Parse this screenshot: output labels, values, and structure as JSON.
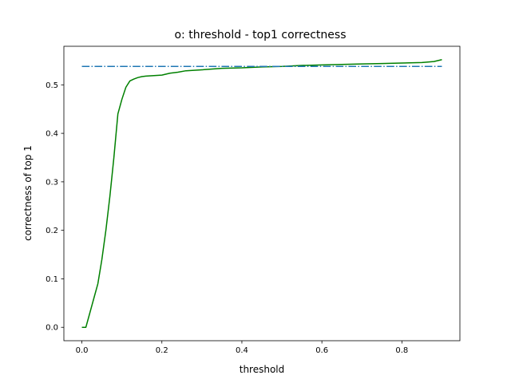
{
  "chart_data": {
    "type": "line",
    "title": "o: threshold - top1 correctness",
    "xlabel": "threshold",
    "ylabel": "correctness of top 1",
    "xlim": [
      -0.045,
      0.945
    ],
    "ylim": [
      -0.0276,
      0.5795
    ],
    "xticks": [
      0.0,
      0.2,
      0.4,
      0.6,
      0.8
    ],
    "xtick_labels": [
      "0.0",
      "0.2",
      "0.4",
      "0.6",
      "0.8"
    ],
    "yticks": [
      0.0,
      0.1,
      0.2,
      0.3,
      0.4,
      0.5
    ],
    "ytick_labels": [
      "0.0",
      "0.1",
      "0.2",
      "0.3",
      "0.4",
      "0.5"
    ],
    "grid": false,
    "series": [
      {
        "color": "#008000",
        "style": "solid",
        "x": [
          0.0,
          0.01,
          0.02,
          0.03,
          0.04,
          0.05,
          0.06,
          0.07,
          0.08,
          0.09,
          0.1,
          0.11,
          0.12,
          0.13,
          0.14,
          0.15,
          0.16,
          0.18,
          0.2,
          0.22,
          0.24,
          0.26,
          0.3,
          0.35,
          0.4,
          0.45,
          0.5,
          0.55,
          0.6,
          0.65,
          0.7,
          0.75,
          0.8,
          0.85,
          0.88,
          0.9
        ],
        "y": [
          0.0,
          0.0,
          0.03,
          0.06,
          0.09,
          0.14,
          0.2,
          0.27,
          0.35,
          0.44,
          0.47,
          0.495,
          0.508,
          0.512,
          0.515,
          0.517,
          0.518,
          0.519,
          0.52,
          0.524,
          0.526,
          0.529,
          0.531,
          0.534,
          0.535,
          0.537,
          0.538,
          0.54,
          0.541,
          0.542,
          0.543,
          0.544,
          0.545,
          0.546,
          0.548,
          0.552
        ]
      },
      {
        "color": "#1f77b4",
        "style": "dashdot",
        "x": [
          0.0,
          0.9
        ],
        "y": [
          0.538,
          0.538
        ]
      }
    ]
  }
}
